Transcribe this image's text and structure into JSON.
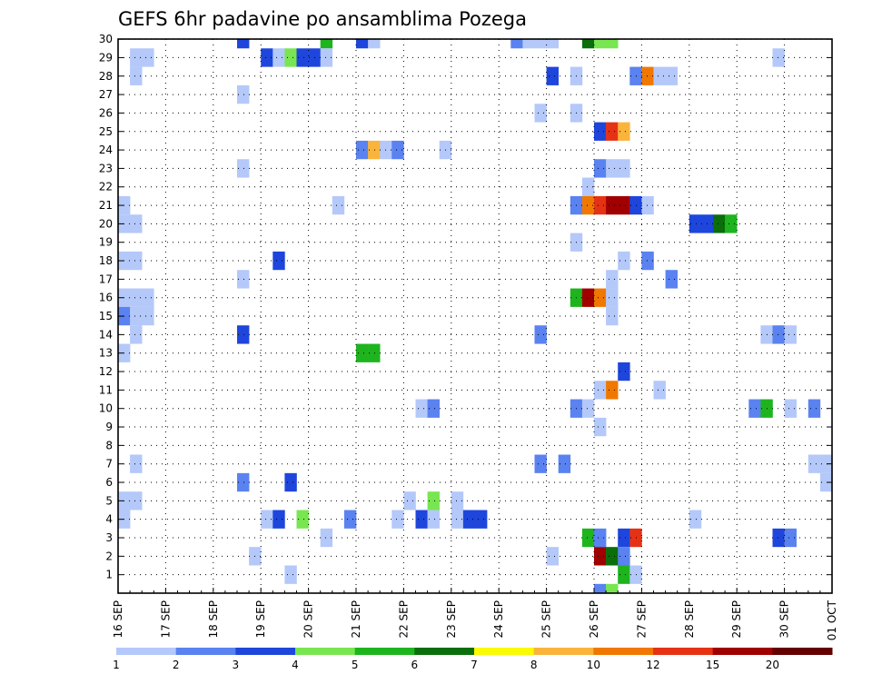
{
  "chart_data": {
    "type": "heatmap",
    "title": "GEFS 6hr padavine po ansamblima Pozega",
    "xlabel": "",
    "ylabel": "",
    "x_tick_labels": [
      "16 SEP",
      "17 SEP",
      "18 SEP",
      "19 SEP",
      "20 SEP",
      "21 SEP",
      "22 SEP",
      "23 SEP",
      "24 SEP",
      "25 SEP",
      "26 SEP",
      "27 SEP",
      "28 SEP",
      "29 SEP",
      "30 SEP",
      "01 OCT"
    ],
    "y_tick_labels": [
      "1",
      "2",
      "3",
      "4",
      "5",
      "6",
      "7",
      "8",
      "9",
      "10",
      "11",
      "12",
      "13",
      "14",
      "15",
      "16",
      "17",
      "18",
      "19",
      "20",
      "21",
      "22",
      "23",
      "24",
      "25",
      "26",
      "27",
      "28",
      "29",
      "30"
    ],
    "steps_per_day": 4,
    "x_range_days": [
      0,
      15
    ],
    "y_range": [
      0,
      30
    ],
    "grid": true,
    "colorbar_labels": [
      "1",
      "2",
      "3",
      "4",
      "5",
      "6",
      "7",
      "8",
      "10",
      "12",
      "15",
      "20"
    ],
    "colorbar_colors": [
      "#b4c8fa",
      "#5a82f0",
      "#1e46dc",
      "#78e650",
      "#1eb41e",
      "#0a6e0a",
      "#fafa00",
      "#fab43c",
      "#f07800",
      "#e63214",
      "#a00000",
      "#640000"
    ],
    "cells": [
      [
        30,
        2.5,
        3
      ],
      [
        30,
        4.25,
        5
      ],
      [
        30,
        5.0,
        3
      ],
      [
        30,
        5.25,
        1
      ],
      [
        30,
        8.25,
        2
      ],
      [
        30,
        8.5,
        1
      ],
      [
        30,
        8.75,
        1
      ],
      [
        30,
        9.0,
        1
      ],
      [
        30,
        9.75,
        6
      ],
      [
        30,
        10.0,
        4
      ],
      [
        30,
        10.25,
        4
      ],
      [
        29,
        0.25,
        1
      ],
      [
        29,
        0.5,
        1
      ],
      [
        29,
        3.0,
        3
      ],
      [
        29,
        3.25,
        1
      ],
      [
        29,
        3.5,
        4
      ],
      [
        29,
        3.75,
        3
      ],
      [
        29,
        4.0,
        3
      ],
      [
        29,
        4.25,
        1
      ],
      [
        29,
        13.75,
        1
      ],
      [
        28,
        0.25,
        1
      ],
      [
        28,
        9.0,
        3
      ],
      [
        28,
        9.5,
        1
      ],
      [
        28,
        10.75,
        2
      ],
      [
        28,
        11.0,
        10
      ],
      [
        28,
        11.25,
        1
      ],
      [
        28,
        11.5,
        1
      ],
      [
        27,
        2.5,
        1
      ],
      [
        26,
        8.75,
        1
      ],
      [
        26,
        9.5,
        1
      ],
      [
        25,
        10.0,
        3
      ],
      [
        25,
        10.25,
        12
      ],
      [
        25,
        10.5,
        8
      ],
      [
        24,
        5.0,
        2
      ],
      [
        24,
        5.25,
        8
      ],
      [
        24,
        5.5,
        1
      ],
      [
        24,
        5.75,
        2
      ],
      [
        24,
        6.75,
        1
      ],
      [
        23,
        2.5,
        1
      ],
      [
        23,
        10.0,
        2
      ],
      [
        23,
        10.25,
        1
      ],
      [
        23,
        10.5,
        1
      ],
      [
        22,
        9.75,
        1
      ],
      [
        21,
        0.0,
        1
      ],
      [
        21,
        4.5,
        1
      ],
      [
        21,
        9.5,
        2
      ],
      [
        21,
        9.75,
        10
      ],
      [
        21,
        10.0,
        12
      ],
      [
        21,
        10.25,
        15
      ],
      [
        21,
        10.5,
        15
      ],
      [
        21,
        10.75,
        3
      ],
      [
        21,
        11.0,
        1
      ],
      [
        20,
        0.0,
        1
      ],
      [
        20,
        0.25,
        1
      ],
      [
        20,
        12.0,
        3
      ],
      [
        20,
        12.25,
        3
      ],
      [
        20,
        12.5,
        6
      ],
      [
        20,
        12.75,
        5
      ],
      [
        19,
        9.5,
        1
      ],
      [
        18,
        0.0,
        1
      ],
      [
        18,
        0.25,
        1
      ],
      [
        18,
        3.25,
        3
      ],
      [
        18,
        10.5,
        1
      ],
      [
        18,
        11.0,
        2
      ],
      [
        17,
        2.5,
        1
      ],
      [
        17,
        10.25,
        1
      ],
      [
        17,
        11.5,
        2
      ],
      [
        16,
        0.0,
        1
      ],
      [
        16,
        0.25,
        1
      ],
      [
        16,
        0.5,
        1
      ],
      [
        16,
        9.5,
        5
      ],
      [
        16,
        9.75,
        15
      ],
      [
        16,
        10.0,
        10
      ],
      [
        16,
        10.25,
        1
      ],
      [
        15,
        0.0,
        2
      ],
      [
        15,
        0.25,
        1
      ],
      [
        15,
        0.5,
        1
      ],
      [
        15,
        10.25,
        1
      ],
      [
        14,
        0.25,
        1
      ],
      [
        14,
        2.5,
        3
      ],
      [
        14,
        8.75,
        2
      ],
      [
        14,
        13.5,
        1
      ],
      [
        14,
        13.75,
        2
      ],
      [
        14,
        14.0,
        1
      ],
      [
        13,
        0.0,
        1
      ],
      [
        13,
        5.0,
        5
      ],
      [
        13,
        5.25,
        5
      ],
      [
        12,
        10.5,
        3
      ],
      [
        11,
        10.0,
        1
      ],
      [
        11,
        10.25,
        10
      ],
      [
        11,
        11.25,
        1
      ],
      [
        10,
        6.25,
        1
      ],
      [
        10,
        6.5,
        2
      ],
      [
        10,
        9.5,
        2
      ],
      [
        10,
        9.75,
        1
      ],
      [
        10,
        13.25,
        2
      ],
      [
        10,
        13.5,
        5
      ],
      [
        10,
        14.0,
        1
      ],
      [
        10,
        14.5,
        2
      ],
      [
        9,
        10.0,
        1
      ],
      [
        7,
        0.25,
        1
      ],
      [
        7,
        8.75,
        2
      ],
      [
        7,
        9.25,
        2
      ],
      [
        7,
        14.5,
        1
      ],
      [
        7,
        14.75,
        1
      ],
      [
        6,
        2.5,
        2
      ],
      [
        6,
        3.5,
        3
      ],
      [
        6,
        14.75,
        1
      ],
      [
        5,
        0.0,
        1
      ],
      [
        5,
        0.25,
        1
      ],
      [
        5,
        6.0,
        1
      ],
      [
        5,
        6.5,
        4
      ],
      [
        5,
        7.0,
        1
      ],
      [
        4,
        0.0,
        1
      ],
      [
        4,
        3.0,
        1
      ],
      [
        4,
        3.25,
        3
      ],
      [
        4,
        3.75,
        4
      ],
      [
        4,
        4.75,
        2
      ],
      [
        4,
        5.75,
        1
      ],
      [
        4,
        6.25,
        3
      ],
      [
        4,
        6.5,
        1
      ],
      [
        4,
        7.0,
        1
      ],
      [
        4,
        7.25,
        3
      ],
      [
        4,
        7.5,
        3
      ],
      [
        4,
        12.0,
        1
      ],
      [
        3,
        4.25,
        1
      ],
      [
        3,
        9.75,
        5
      ],
      [
        3,
        10.0,
        2
      ],
      [
        3,
        10.5,
        3
      ],
      [
        3,
        10.75,
        12
      ],
      [
        3,
        13.75,
        3
      ],
      [
        3,
        14.0,
        2
      ],
      [
        2,
        2.75,
        1
      ],
      [
        2,
        9.0,
        1
      ],
      [
        2,
        10.0,
        15
      ],
      [
        2,
        10.25,
        6
      ],
      [
        2,
        10.5,
        2
      ],
      [
        1,
        3.5,
        1
      ],
      [
        1,
        10.5,
        5
      ],
      [
        1,
        10.75,
        1
      ],
      [
        0,
        10.0,
        2
      ],
      [
        0,
        10.25,
        4
      ]
    ]
  }
}
